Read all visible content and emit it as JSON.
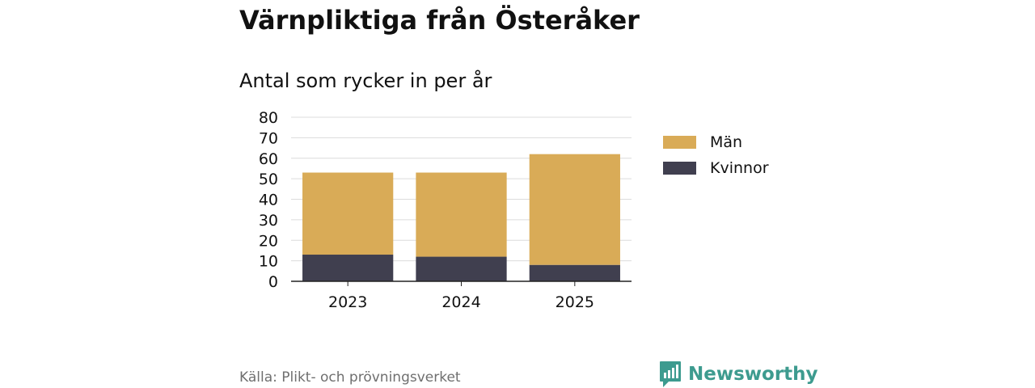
{
  "chart_data": {
    "type": "bar",
    "stacked": true,
    "title": "Värnpliktiga från Österåker",
    "subtitle": "Antal som rycker in per år",
    "categories": [
      "2023",
      "2024",
      "2025"
    ],
    "series": [
      {
        "name": "Kvinnor",
        "color": "#403f4f",
        "values": [
          13,
          12,
          8
        ]
      },
      {
        "name": "Män",
        "color": "#d9ab57",
        "values": [
          40,
          41,
          54
        ]
      }
    ],
    "legend_order": [
      "Män",
      "Kvinnor"
    ],
    "ylim": [
      0,
      80
    ],
    "yticks": [
      0,
      10,
      20,
      30,
      40,
      50,
      60,
      70,
      80
    ],
    "grid": true,
    "legend_position": "right"
  },
  "footer": {
    "source": "Källa: Plikt- och prövningsverket",
    "brand": "Newsworthy",
    "brand_icon": "bar-chart-pin-icon",
    "brand_color": "#3d9b8f"
  }
}
